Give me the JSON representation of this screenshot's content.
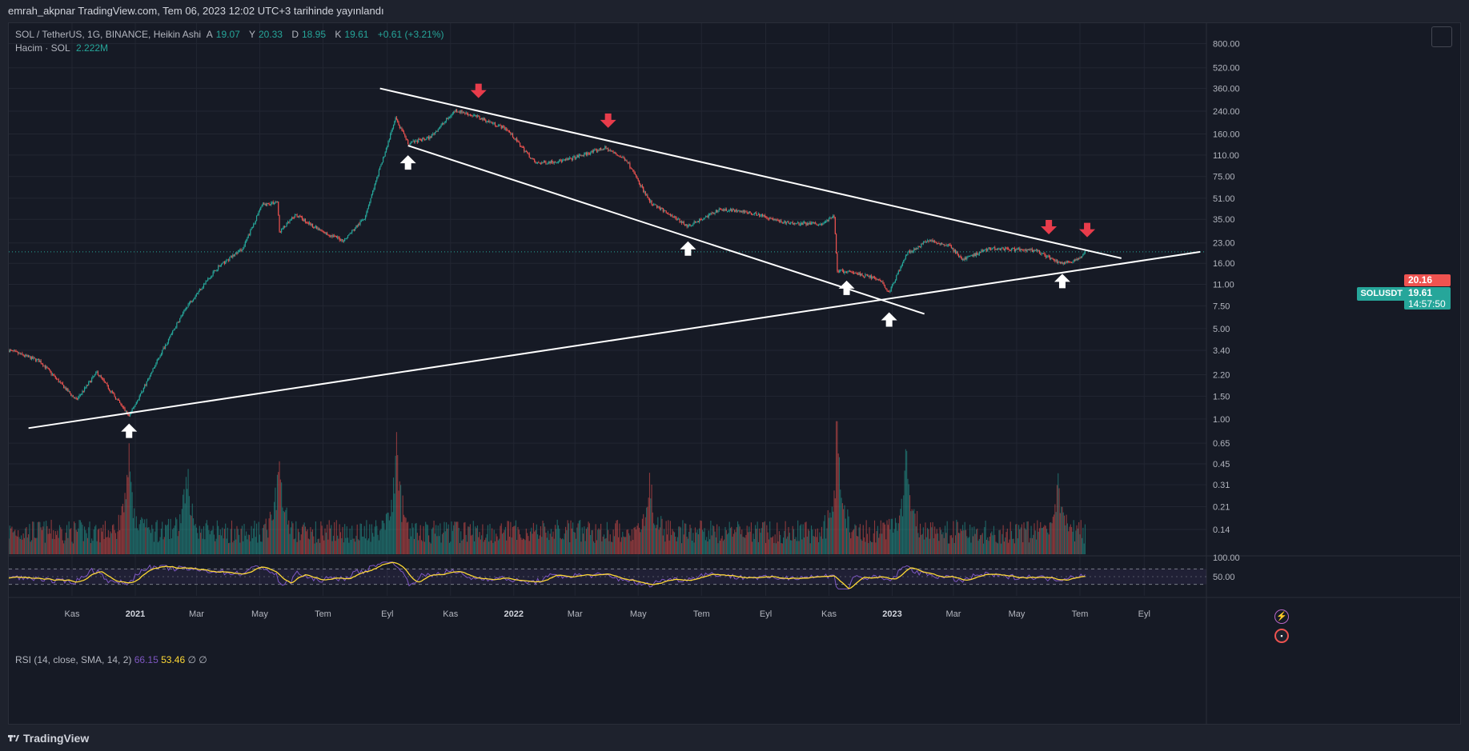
{
  "publish_bar": "emrah_akpnar TradingView.com, Tem 06, 2023 12:02 UTC+3 tarihinde yayınlandı",
  "legend": {
    "symbol": "SOL / TetherUS, 1G, BINANCE, Heikin Ashi",
    "open_label": "A",
    "open": "19.07",
    "high_label": "Y",
    "high": "20.33",
    "low_label": "D",
    "low": "18.95",
    "close_label": "K",
    "close": "19.61",
    "change": "+0.61 (+3.21%)",
    "volume_label": "Hacim · SOL",
    "volume_value": "2.222M"
  },
  "rsi_legend": {
    "label": "RSI (14, close, SMA, 14, 2)",
    "rsi_value": "66.15",
    "sma_value": "53.46",
    "extra": "∅ ∅"
  },
  "price_tags": {
    "high": "20.16",
    "last": "19.61",
    "countdown": "14:57:50",
    "symbol": "SOLUSDT"
  },
  "branding": {
    "text": "TradingView"
  },
  "colors": {
    "up": "#26a69a",
    "down": "#ef5350",
    "rsi_line": "#7e57c2",
    "rsi_sma": "#fdd835",
    "trendline": "#ffffff",
    "down_arrow": "#e83c4b",
    "up_arrow": "#ffffff"
  },
  "chart_data": {
    "type": "candlestick",
    "title": "SOL / TetherUS, 1G, BINANCE, Heikin Ashi",
    "yscale": "log",
    "ylim": [
      0.09,
      1150
    ],
    "y_ticks": [
      "800.00",
      "520.00",
      "360.00",
      "240.00",
      "160.00",
      "110.00",
      "75.00",
      "51.00",
      "35.00",
      "23.00",
      "16.00",
      "11.00",
      "7.50",
      "5.00",
      "3.40",
      "2.20",
      "1.50",
      "1.00",
      "0.65",
      "0.45",
      "0.31",
      "0.21",
      "0.14"
    ],
    "x_ticks": [
      "Kas",
      "2021",
      "Mar",
      "May",
      "Tem",
      "Eyl",
      "Kas",
      "2022",
      "Mar",
      "May",
      "Tem",
      "Eyl",
      "Kas",
      "2023",
      "Mar",
      "May",
      "Tem",
      "Eyl"
    ],
    "x_range": [
      "2020-09-01",
      "2023-10-31"
    ],
    "tick_dates": [
      "2020-11-01",
      "2021-01-01",
      "2021-03-01",
      "2021-05-01",
      "2021-07-01",
      "2021-09-01",
      "2021-11-01",
      "2022-01-01",
      "2022-03-01",
      "2022-05-01",
      "2022-07-01",
      "2022-09-01",
      "2022-11-01",
      "2023-01-01",
      "2023-03-01",
      "2023-05-01",
      "2023-07-01",
      "2023-09-01"
    ],
    "price_path": [
      [
        "2020-09-01",
        3.4
      ],
      [
        "2020-10-01",
        2.8
      ],
      [
        "2020-11-05",
        1.4
      ],
      [
        "2020-11-25",
        2.3
      ],
      [
        "2020-12-26",
        1.05
      ],
      [
        "2021-01-10",
        1.8
      ],
      [
        "2021-01-28",
        3.5
      ],
      [
        "2021-02-20",
        7.5
      ],
      [
        "2021-03-20",
        14.5
      ],
      [
        "2021-04-15",
        21
      ],
      [
        "2021-05-03",
        45
      ],
      [
        "2021-05-18",
        48
      ],
      [
        "2021-05-20",
        28
      ],
      [
        "2021-06-05",
        38
      ],
      [
        "2021-06-30",
        28
      ],
      [
        "2021-07-21",
        24
      ],
      [
        "2021-08-10",
        36
      ],
      [
        "2021-09-09",
        210
      ],
      [
        "2021-09-21",
        135
      ],
      [
        "2021-10-12",
        150
      ],
      [
        "2021-11-06",
        245
      ],
      [
        "2021-11-28",
        215
      ],
      [
        "2021-12-25",
        175
      ],
      [
        "2022-01-22",
        95
      ],
      [
        "2022-02-20",
        100
      ],
      [
        "2022-03-30",
        125
      ],
      [
        "2022-04-20",
        100
      ],
      [
        "2022-05-12",
        48
      ],
      [
        "2022-06-18",
        31
      ],
      [
        "2022-07-20",
        42
      ],
      [
        "2022-08-20",
        39
      ],
      [
        "2022-09-20",
        33
      ],
      [
        "2022-10-25",
        32
      ],
      [
        "2022-11-06",
        37
      ],
      [
        "2022-11-09",
        14
      ],
      [
        "2022-11-25",
        13.5
      ],
      [
        "2022-12-20",
        12
      ],
      [
        "2022-12-29",
        9.5
      ],
      [
        "2023-01-15",
        19
      ],
      [
        "2023-02-05",
        24
      ],
      [
        "2023-02-25",
        22
      ],
      [
        "2023-03-10",
        17
      ],
      [
        "2023-04-05",
        21
      ],
      [
        "2023-05-20",
        20
      ],
      [
        "2023-06-12",
        16
      ],
      [
        "2023-06-30",
        17
      ],
      [
        "2023-07-06",
        19.61
      ]
    ],
    "trendlines": [
      {
        "name": "upper-resistance",
        "from": [
          "2021-08-25",
          360
        ],
        "to": [
          "2023-08-10",
          17.5
        ]
      },
      {
        "name": "lower-channel",
        "from": [
          "2021-09-21",
          130
        ],
        "to": [
          "2023-02-01",
          6.5
        ]
      },
      {
        "name": "long-support",
        "from": [
          "2020-09-20",
          0.85
        ],
        "to": [
          "2023-10-25",
          19.61
        ]
      }
    ],
    "down_arrows": [
      [
        "2021-11-28",
        340
      ],
      [
        "2022-04-02",
        200
      ],
      [
        "2023-06-01",
        30
      ],
      [
        "2023-07-08",
        28.5
      ]
    ],
    "up_arrows": [
      [
        "2020-12-26",
        0.8
      ],
      [
        "2021-09-21",
        95
      ],
      [
        "2022-06-18",
        20.5
      ],
      [
        "2022-11-18",
        10.2
      ],
      [
        "2022-12-29",
        5.8
      ],
      [
        "2023-06-14",
        11.5
      ]
    ],
    "volume": {
      "label": "Hacim · SOL",
      "last": "2.222M",
      "spikes": [
        [
          "2020-12-26",
          0.75
        ],
        [
          "2021-02-20",
          0.6
        ],
        [
          "2021-05-20",
          0.8
        ],
        [
          "2021-09-10",
          0.9
        ],
        [
          "2022-05-12",
          0.5
        ],
        [
          "2022-11-09",
          1.0
        ],
        [
          "2023-01-15",
          0.85
        ],
        [
          "2023-06-10",
          0.55
        ]
      ]
    },
    "rsi": {
      "period": 14,
      "source": "close",
      "ma": "SMA",
      "ma_len": 14,
      "value": 66.15,
      "sma": 53.46,
      "upper_band": 70,
      "lower_band": 30,
      "y_ticks": [
        "100.00",
        "50.00"
      ]
    }
  }
}
